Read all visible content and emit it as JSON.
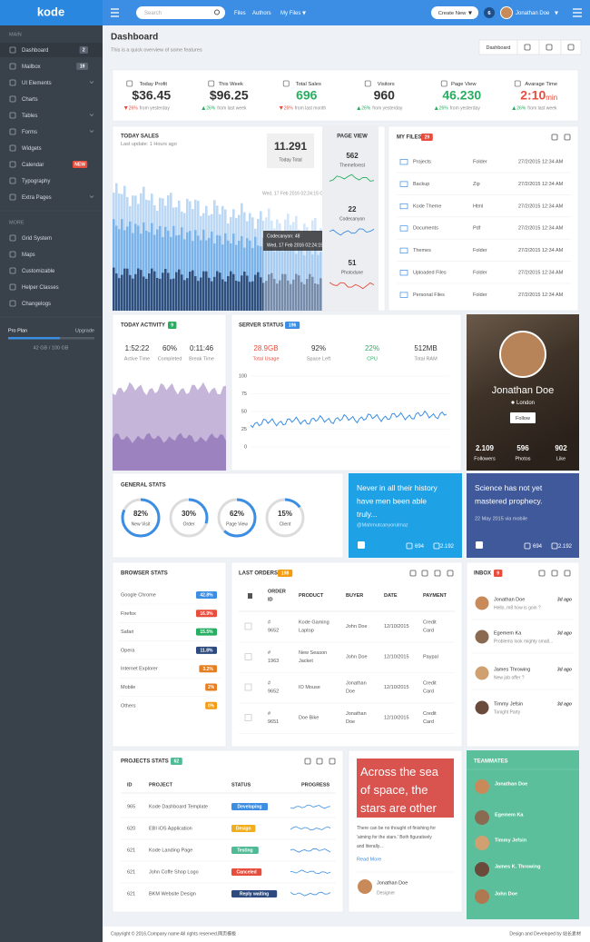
{
  "topbar": {
    "logo": "kode",
    "search_placeholder": "Search",
    "nav": [
      "Files",
      "Authors",
      "My Files"
    ],
    "create_button": "Create New",
    "notifications": "6",
    "user": "Jonathan Doe"
  },
  "sidebar": {
    "sections": [
      {
        "title": "MAIN",
        "items": [
          {
            "label": "Dashboard",
            "badge": "2",
            "badge_color": "#5a6370"
          },
          {
            "label": "Mailbox",
            "badge": "19",
            "badge_color": "#5a6370"
          },
          {
            "label": "UI Elements",
            "submenu": true
          },
          {
            "label": "Charts"
          },
          {
            "label": "Tables",
            "submenu": true
          },
          {
            "label": "Forms",
            "submenu": true
          },
          {
            "label": "Widgets"
          },
          {
            "label": "Calendar",
            "badge": "NEW",
            "badge_color": "#e74c3c"
          },
          {
            "label": "Typography"
          },
          {
            "label": "Extra Pages",
            "submenu": true
          }
        ]
      },
      {
        "title": "MORE",
        "items": [
          {
            "label": "Grid System"
          },
          {
            "label": "Maps"
          },
          {
            "label": "Customizable"
          },
          {
            "label": "Helper Classes"
          },
          {
            "label": "Changelogs"
          }
        ]
      }
    ],
    "plan": {
      "name": "Pro Plan",
      "action": "Upgrade",
      "usage": "42 GB / 100 GB"
    }
  },
  "header": {
    "title": "Dashboard",
    "subtitle": "This is a quick overview of some features",
    "button": "Dashboard"
  },
  "stats": [
    {
      "label": "Today Profit",
      "value": "$36.45",
      "color": "#333333",
      "trend": "down",
      "change": "26%",
      "note": "from yesterday"
    },
    {
      "label": "This Week",
      "value": "$96.25",
      "color": "#333333",
      "trend": "up",
      "change": "26%",
      "note": "from last week"
    },
    {
      "label": "Total Sales",
      "value": "696",
      "color": "#27ae60",
      "trend": "down",
      "change": "26%",
      "note": "from last month"
    },
    {
      "label": "Visitors",
      "value": "960",
      "color": "#333333",
      "trend": "up",
      "change": "26%",
      "note": "from yesterday"
    },
    {
      "label": "Page View",
      "value": "46.230",
      "color": "#27ae60",
      "trend": "up",
      "change": "26%",
      "note": "from yesterday"
    },
    {
      "label": "Avarage Time",
      "value": "2:10",
      "unit": "min",
      "color": "#e74c3c",
      "trend": "up",
      "change": "26%",
      "note": "from last week"
    }
  ],
  "today_sales": {
    "title": "TODAY SALES",
    "subtitle": "Last update: 1 Hours ago",
    "total": "11.291",
    "total_label": "Today Total",
    "hover_date": "Wed, 17 Feb 2016 02:24:15 GMT",
    "tooltip": [
      "Codecanyon: 48",
      "Wed, 17 Feb 2016 02:24:15 GMT"
    ],
    "page_view": {
      "title": "PAGE VIEW",
      "items": [
        {
          "value": "562",
          "label": "Themeforest",
          "color": "#27ae60"
        },
        {
          "value": "22",
          "label": "Codecanyon",
          "color": "#3b8ee3"
        },
        {
          "value": "51",
          "label": "Photodune",
          "color": "#e74c3c"
        }
      ]
    }
  },
  "my_files": {
    "title": "MY FILES",
    "badge": "29",
    "rows": [
      [
        "Projects",
        "Folder",
        "27/2/2015 12:34 AM"
      ],
      [
        "Backup",
        "Zip",
        "27/2/2015 12:34 AM"
      ],
      [
        "Kode Theme",
        "Html",
        "27/2/2015 12:34 AM"
      ],
      [
        "Documents",
        "Pdf",
        "27/2/2015 12:34 AM"
      ],
      [
        "Themes",
        "Folder",
        "27/2/2015 12:34 AM"
      ],
      [
        "Uploaded Files",
        "Folder",
        "27/2/2015 12:34 AM"
      ],
      [
        "Personal Files",
        "Folder",
        "27/2/2015 12:34 AM"
      ]
    ]
  },
  "today_activity": {
    "title": "TODAY ACTIVITY",
    "badge": "9",
    "stats": [
      {
        "value": "1:52:22",
        "label": "Active Time"
      },
      {
        "value": "60%",
        "label": "Completed"
      },
      {
        "value": "0:11:46",
        "label": "Break Time"
      }
    ]
  },
  "server_status": {
    "title": "SERVER STATUS",
    "badge": "196",
    "stats": [
      {
        "value": "28.9GB",
        "label": "Total Usage",
        "color": "#e74c3c"
      },
      {
        "value": "92%",
        "label": "Space Left",
        "color": "#333333"
      },
      {
        "value": "22%",
        "label": "CPU",
        "color": "#27ae60"
      },
      {
        "value": "512MB",
        "label": "Total RAM",
        "color": "#333333"
      }
    ],
    "ylim": [
      0,
      100
    ],
    "yticks": [
      0,
      25,
      50,
      75,
      100
    ]
  },
  "profile": {
    "name": "Jonathan Doe",
    "location": "London",
    "button": "Follow",
    "stats": [
      {
        "value": "2.109",
        "label": "Followers"
      },
      {
        "value": "596",
        "label": "Photos"
      },
      {
        "value": "902",
        "label": "Like"
      }
    ]
  },
  "general_stats": {
    "title": "GENERAL STATS",
    "items": [
      {
        "value": "82%",
        "label": "New Visit"
      },
      {
        "value": "30%",
        "label": "Order"
      },
      {
        "value": "62%",
        "label": "Page View"
      },
      {
        "value": "15%",
        "label": "Client"
      }
    ]
  },
  "tweets": [
    {
      "text": "Never in all their history have men been able truly...",
      "meta": "@Mahmutcanyorulmaz",
      "counts": [
        "694",
        "2.192"
      ]
    },
    {
      "text": "Science has not yet mastered prophecy.",
      "meta": "22 May 2015 via mobile",
      "counts": [
        "694",
        "2.192"
      ]
    }
  ],
  "browser_stats": {
    "title": "BROWSER STATS",
    "rows": [
      {
        "name": "Google Chrome",
        "value": "42.8%",
        "color": "#3b8ee3"
      },
      {
        "name": "Firefox",
        "value": "16.9%",
        "color": "#e74c3c"
      },
      {
        "name": "Safari",
        "value": "15.5%",
        "color": "#27ae60"
      },
      {
        "name": "Opera",
        "value": "11.8%",
        "color": "#2c4a7e"
      },
      {
        "name": "Internet Explorer",
        "value": "3.2%",
        "color": "#e67e22"
      },
      {
        "name": "Mobile",
        "value": "2%",
        "color": "#e67e22"
      },
      {
        "name": "Others",
        "value": "0%",
        "color": "#f39c12"
      }
    ]
  },
  "last_orders": {
    "title": "LAST ORDERS",
    "badge": "198",
    "columns": [
      "ORDER ID",
      "PRODUCT",
      "BUYER",
      "DATE",
      "PAYMENT"
    ],
    "rows": [
      [
        "# 9652",
        "Kode Gaming Laptop",
        "John Doe",
        "12/10/2015",
        "Credit Card"
      ],
      [
        "# 1963",
        "New Season Jacket",
        "John Doe",
        "12/10/2015",
        "Paypal"
      ],
      [
        "# 9652",
        "IO Mouse",
        "Jonathan Doe",
        "12/10/2015",
        "Credit Card"
      ],
      [
        "# 9651",
        "Doe Bike",
        "Jonathan Doe",
        "12/10/2015",
        "Credit Card"
      ]
    ]
  },
  "inbox": {
    "title": "INBOX",
    "badge": "9",
    "items": [
      {
        "name": "Jonathan Doe",
        "message": "Hello, m8 how is goin ?",
        "time": "3d ago"
      },
      {
        "name": "Egemem Ka",
        "message": "Problems look mighty small...",
        "time": "3d ago"
      },
      {
        "name": "James Throwing",
        "message": "New job offer ?",
        "time": "3d ago"
      },
      {
        "name": "Timmy Jefsin",
        "message": "Tonight Party",
        "time": "3d ago"
      }
    ]
  },
  "projects": {
    "title": "PROJECTS STATS",
    "badge": "62",
    "columns": [
      "ID",
      "PROJECT",
      "STATUS",
      "PROGRESS"
    ],
    "rows": [
      {
        "id": "965",
        "project": "Kode Dashboard Template",
        "status": "Developing",
        "color": "#3b8ee3"
      },
      {
        "id": "620",
        "project": "EBI iOS Application",
        "status": "Design",
        "color": "#f0ad1e"
      },
      {
        "id": "621",
        "project": "Kode Landing Page",
        "status": "Testing",
        "color": "#4fbb95"
      },
      {
        "id": "621",
        "project": "John Coffe Shop Logo",
        "status": "Canceled",
        "color": "#e74c3c"
      },
      {
        "id": "621",
        "project": "BKM Website Design",
        "status": "Reply waiting",
        "color": "#2c4a7e"
      }
    ]
  },
  "blog": {
    "headline": "Across the sea of space, the stars are other",
    "text": "There can be no thought of finishing for 'aiming for the stars.' Both figuratively and literally...",
    "link": "Read More",
    "author": "Jonathan Doe",
    "role": "Designer"
  },
  "teammates": {
    "title": "TEAMMATES",
    "items": [
      "Jonathan Doe",
      "Egemem Ka",
      "Timmy Jefsin",
      "James K. Throwing",
      "John Doe"
    ]
  },
  "footer": {
    "left": "Copyright © 2016.Company name All rights reserved.网页模板",
    "right": "Design and Developed by 站长素材"
  }
}
